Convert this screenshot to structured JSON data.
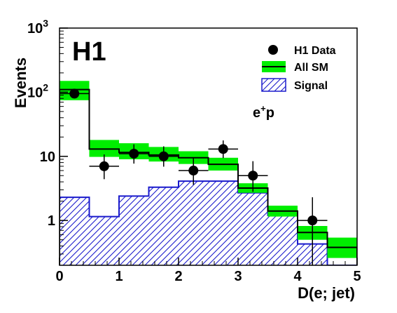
{
  "chart_data": {
    "type": "histogram",
    "title": "",
    "xlabel": "D(e; jet)",
    "ylabel": "Events",
    "logo": "H1",
    "annotation": {
      "text_main": "e",
      "text_sup": "+",
      "text_tail": "p"
    },
    "xlim": [
      0,
      5
    ],
    "ylim": [
      0.2,
      1000
    ],
    "yscale": "log",
    "grid": false,
    "legend_position": "top-right",
    "x_ticks": [
      "0",
      "1",
      "2",
      "3",
      "4",
      "5"
    ],
    "y_ticks": [
      {
        "base": "10",
        "exp": "3"
      },
      {
        "base": "10",
        "exp": "2"
      },
      {
        "base": "10",
        "exp": ""
      },
      {
        "base": "1",
        "exp": ""
      }
    ],
    "bin_edges": [
      0,
      0.5,
      1,
      1.5,
      2,
      2.5,
      3,
      3.5,
      4,
      4.5,
      5
    ],
    "colors": {
      "sm_band": "#00ee00",
      "sm_line": "#000000",
      "signal": "#1a1acc",
      "data": "#000000"
    },
    "series": [
      {
        "name": "H1 Data",
        "kind": "points",
        "x": [
          0.25,
          0.75,
          1.25,
          1.75,
          2.25,
          2.75,
          3.25,
          4.25
        ],
        "y": [
          95,
          7,
          11,
          10,
          6,
          13,
          5,
          1
        ],
        "y_err_low": [
          10,
          2.6,
          3.3,
          3.1,
          2.4,
          3.6,
          2.2,
          0.83
        ],
        "y_err_high": [
          10,
          3.7,
          4.4,
          4.3,
          3.6,
          4.7,
          3.4,
          1.3
        ]
      },
      {
        "name": "All SM",
        "kind": "step_with_band",
        "values": [
          110,
          13,
          11.5,
          10.5,
          9.5,
          7.5,
          3.2,
          1.4,
          0.65,
          0.38
        ],
        "band_low": [
          75,
          9.8,
          9,
          8.3,
          7.6,
          6,
          2.7,
          1.15,
          0.5,
          0.26
        ],
        "band_high": [
          150,
          18,
          16,
          14,
          12,
          9.5,
          3.8,
          1.7,
          0.82,
          0.54
        ]
      },
      {
        "name": "Signal",
        "kind": "hatched_step",
        "values": [
          2.3,
          1.15,
          2.4,
          3.3,
          4.1,
          4.1,
          2.7,
          1.2,
          0.43,
          0.2
        ]
      }
    ]
  }
}
